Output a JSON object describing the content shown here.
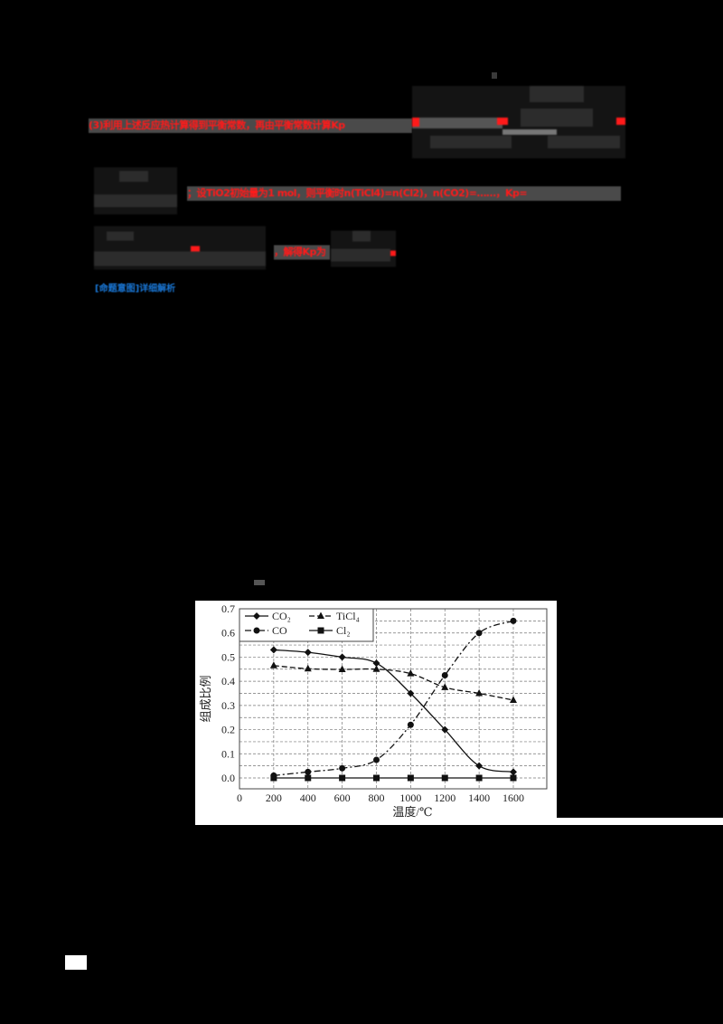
{
  "document": {
    "lines": [
      {
        "id": "line1_left",
        "text": "(3)利用上述反应热计算得到平衡常数，再由平衡常数计算Kp",
        "color": "#ff1a1a",
        "obscured": true
      },
      {
        "id": "line2_right",
        "text": "；设TiO2初始量为1 mol，则平衡时n(TiCl4)=n(Cl2)，n(CO2)=……，Kp=",
        "color": "#ff1a1a",
        "obscured": true
      },
      {
        "id": "line3_mid",
        "text": "，解得Kp为",
        "color": "#ff1a1a",
        "obscured": true
      },
      {
        "id": "link",
        "text": "[命题意图]详细解析",
        "color": "#1a78d8",
        "obscured": true
      }
    ]
  },
  "chart_data": {
    "type": "line",
    "title": "",
    "xlabel": "温度/℃",
    "ylabel": "组成比例",
    "x": [
      200,
      400,
      600,
      800,
      1000,
      1200,
      1400,
      1600
    ],
    "xlim": [
      0,
      1800
    ],
    "ylim": [
      0.0,
      0.7
    ],
    "xticks": [
      0,
      200,
      400,
      600,
      800,
      1000,
      1200,
      1400,
      1600
    ],
    "xtick_labels": [
      "0",
      "200",
      "400",
      "600",
      "800",
      "1000",
      "1200",
      "1400",
      "1600"
    ],
    "yticks": [
      0.0,
      0.1,
      0.2,
      0.3,
      0.4,
      0.5,
      0.6,
      0.7
    ],
    "ytick_labels": [
      "0.0",
      "0.1",
      "0.2",
      "0.3",
      "0.4",
      "0.5",
      "0.6",
      "0.7"
    ],
    "grid": true,
    "legend_position": "upper left",
    "series": [
      {
        "name": "CO2",
        "label": "CO₂",
        "marker": "diamond",
        "linestyle": "solid",
        "values": [
          0.53,
          0.52,
          0.5,
          0.475,
          0.35,
          0.2,
          0.05,
          0.025
        ]
      },
      {
        "name": "TiCl4",
        "label": "TiCl₄",
        "marker": "triangle",
        "linestyle": "dashed",
        "values": [
          0.465,
          0.452,
          0.449,
          0.45,
          0.432,
          0.375,
          0.35,
          0.322
        ]
      },
      {
        "name": "CO",
        "label": "CO",
        "marker": "circle",
        "linestyle": "dashdot",
        "values": [
          0.01,
          0.025,
          0.04,
          0.075,
          0.22,
          0.425,
          0.6,
          0.65
        ]
      },
      {
        "name": "Cl2",
        "label": "Cl₂",
        "marker": "square",
        "linestyle": "solid",
        "values": [
          0.0,
          0.0,
          0.0,
          0.0,
          0.0,
          0.0,
          0.0,
          0.0
        ]
      }
    ]
  }
}
